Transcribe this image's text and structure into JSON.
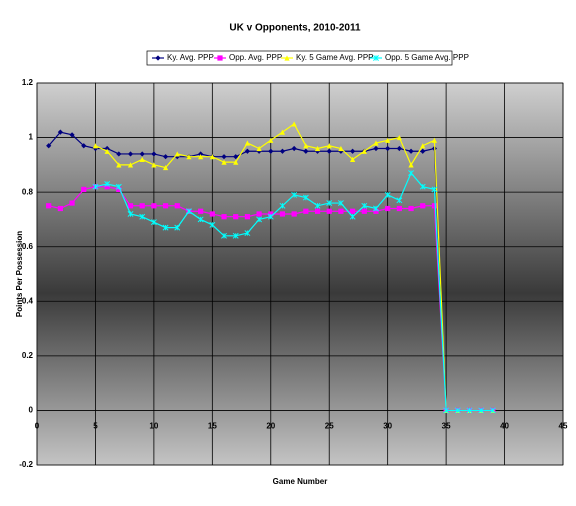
{
  "chart_data": {
    "type": "line",
    "title": "UK v Opponents, 2010-2011",
    "x_label": "Game Number",
    "y_label": "Points Per Possession",
    "x": [
      1,
      2,
      3,
      4,
      5,
      6,
      7,
      8,
      9,
      10,
      11,
      12,
      13,
      14,
      15,
      16,
      17,
      18,
      19,
      20,
      21,
      22,
      23,
      24,
      25,
      26,
      27,
      28,
      29,
      30,
      31,
      32,
      33,
      34,
      35,
      36,
      37,
      38,
      39
    ],
    "series": [
      {
        "name": "Ky. Avg. PPP",
        "color": "#000080",
        "marker": "diamond",
        "values": [
          0.97,
          1.02,
          1.01,
          0.97,
          0.96,
          0.96,
          0.94,
          0.94,
          0.94,
          0.94,
          0.93,
          0.93,
          0.93,
          0.94,
          0.93,
          0.93,
          0.93,
          0.95,
          0.95,
          0.95,
          0.95,
          0.96,
          0.95,
          0.95,
          0.95,
          0.95,
          0.95,
          0.95,
          0.96,
          0.96,
          0.96,
          0.95,
          0.95,
          0.96,
          0,
          0,
          0,
          0,
          0
        ]
      },
      {
        "name": "Opp. Avg. PPP",
        "color": "#ff00ff",
        "marker": "square",
        "values": [
          0.75,
          0.74,
          0.76,
          0.81,
          0.82,
          0.82,
          0.81,
          0.75,
          0.75,
          0.75,
          0.75,
          0.75,
          0.73,
          0.73,
          0.72,
          0.71,
          0.71,
          0.71,
          0.72,
          0.72,
          0.72,
          0.72,
          0.73,
          0.73,
          0.73,
          0.73,
          0.73,
          0.73,
          0.73,
          0.74,
          0.74,
          0.74,
          0.75,
          0.75,
          0,
          0,
          0,
          0,
          0
        ]
      },
      {
        "name": "Ky. 5 Game Avg. PPP",
        "color": "#ffff00",
        "marker": "triangle",
        "values": [
          null,
          null,
          null,
          null,
          0.97,
          0.95,
          0.9,
          0.9,
          0.92,
          0.9,
          0.89,
          0.94,
          0.93,
          0.93,
          0.93,
          0.91,
          0.91,
          0.98,
          0.96,
          0.99,
          1.02,
          1.05,
          0.97,
          0.96,
          0.97,
          0.96,
          0.92,
          0.95,
          0.98,
          0.99,
          1.0,
          0.9,
          0.97,
          0.99,
          0,
          0,
          0,
          0,
          0
        ]
      },
      {
        "name": "Opp. 5 Game Avg. PPP",
        "color": "#00ffff",
        "marker": "cross",
        "values": [
          null,
          null,
          null,
          null,
          0.82,
          0.83,
          0.82,
          0.72,
          0.71,
          0.69,
          0.67,
          0.67,
          0.73,
          0.7,
          0.68,
          0.64,
          0.64,
          0.65,
          0.7,
          0.71,
          0.75,
          0.79,
          0.78,
          0.75,
          0.76,
          0.76,
          0.71,
          0.75,
          0.74,
          0.79,
          0.77,
          0.87,
          0.82,
          0.81,
          0,
          0,
          0,
          0,
          0
        ]
      }
    ],
    "xlim": [
      0,
      45
    ],
    "xticks": [
      0,
      5,
      10,
      15,
      20,
      25,
      30,
      35,
      40,
      45
    ],
    "ylim": [
      -0.2,
      1.2
    ],
    "yticks": [
      1.2,
      1,
      0.8,
      0.6,
      0.4,
      0.2,
      0,
      -0.2
    ],
    "grid": true,
    "legend": "top"
  }
}
